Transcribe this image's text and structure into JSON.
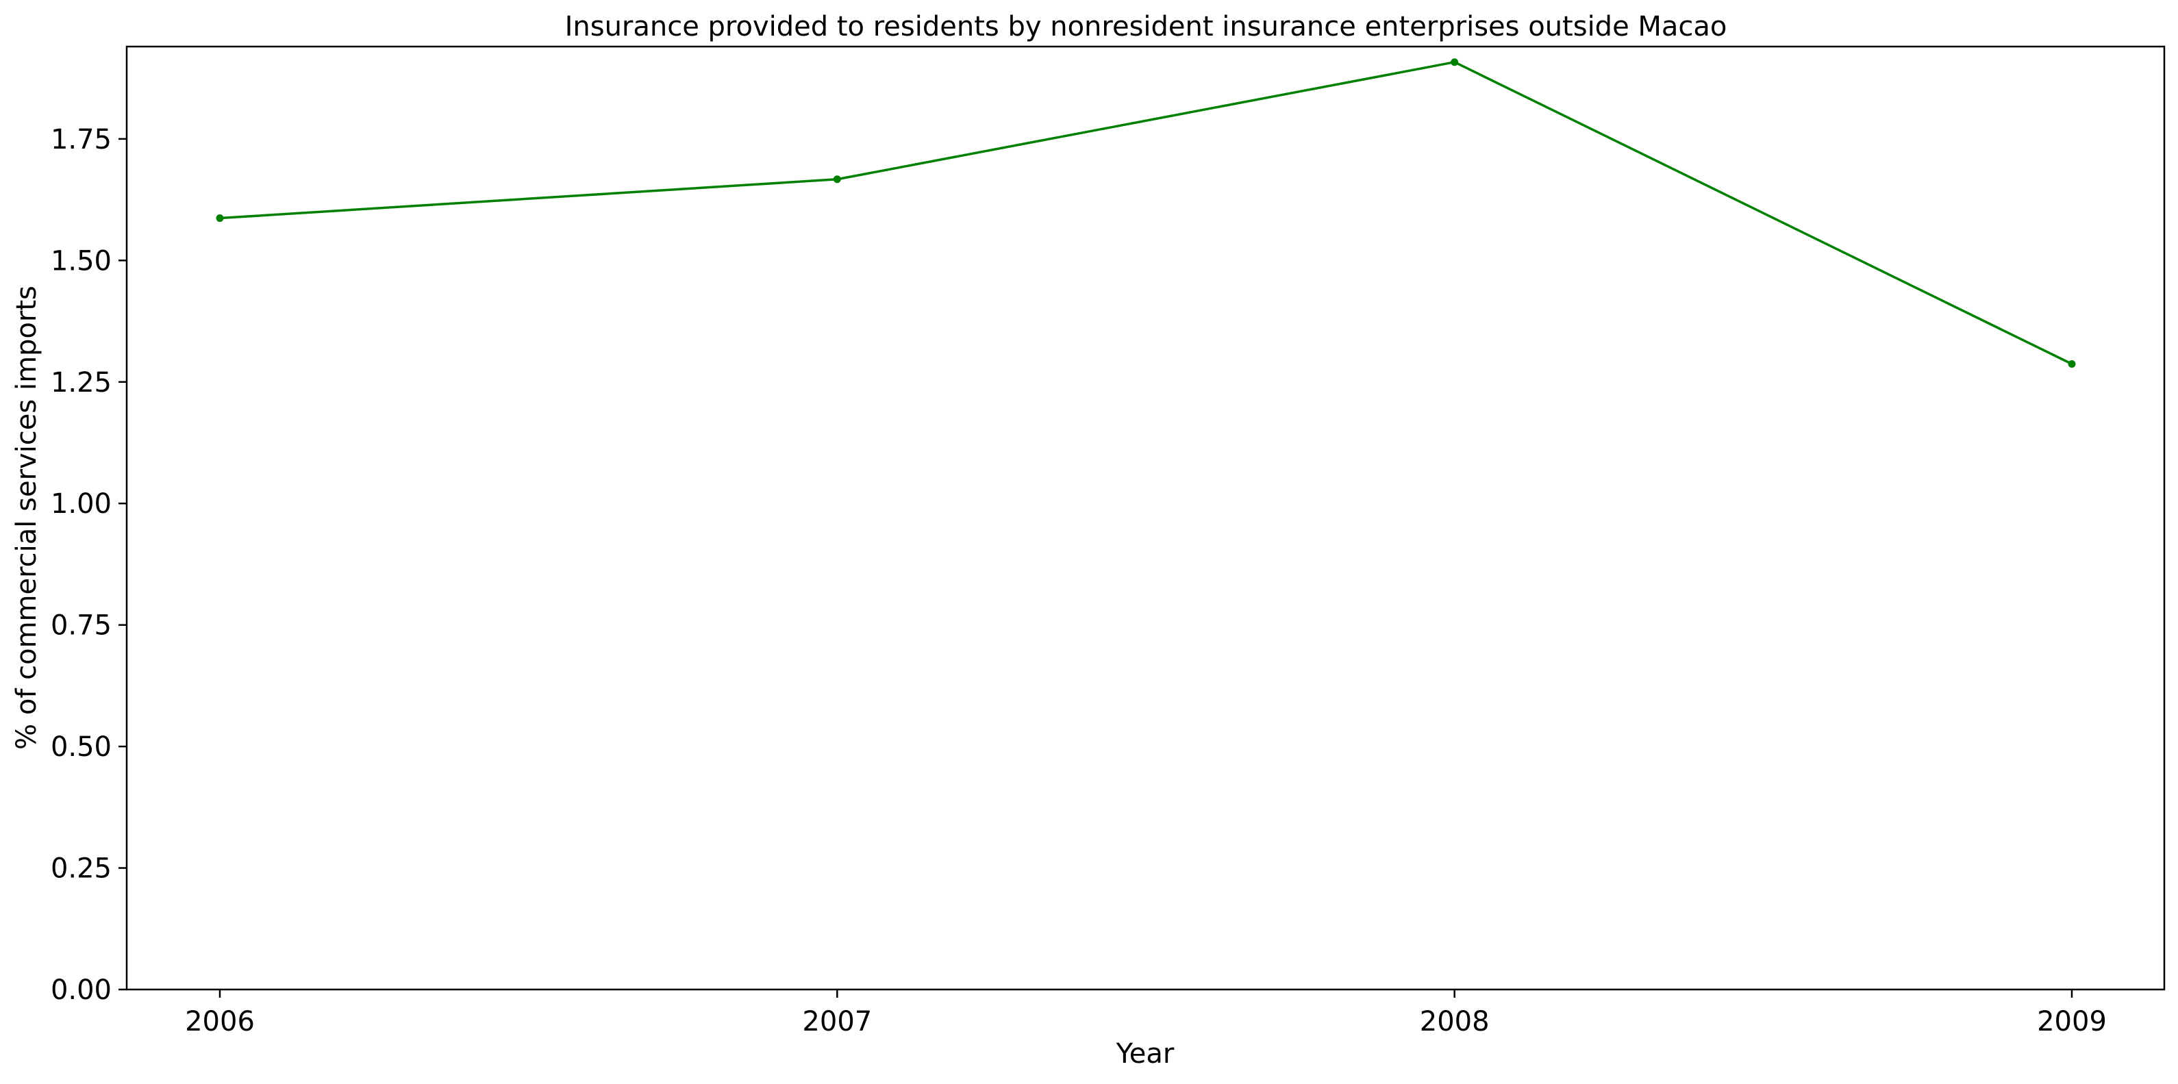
{
  "chart_data": {
    "type": "line",
    "title": "Insurance provided to residents by nonresident insurance enterprises outside Macao",
    "xlabel": "Year",
    "ylabel": "% of commercial services imports",
    "categories": [
      "2006",
      "2007",
      "2008",
      "2009"
    ],
    "series": [
      {
        "values": [
          1.587,
          1.667,
          1.908,
          1.287
        ],
        "color": "#008000",
        "marker": "dot"
      }
    ],
    "ylim": [
      0,
      1.94
    ],
    "yticks": [
      "0.00",
      "0.25",
      "0.50",
      "0.75",
      "1.00",
      "1.25",
      "1.50",
      "1.75"
    ],
    "grid": false,
    "legend": "none"
  }
}
